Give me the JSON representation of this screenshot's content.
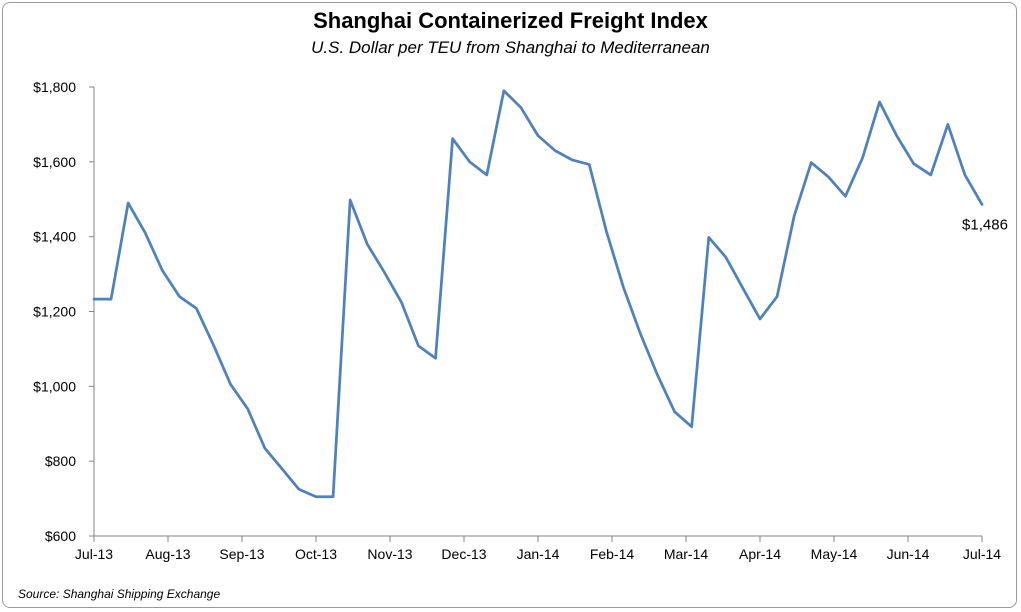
{
  "chart_data": {
    "type": "line",
    "title": "Shanghai Containerized Freight Index",
    "subtitle": "U.S. Dollar per TEU from Shanghai to Mediterranean",
    "source": "Source: Shanghai Shipping Exchange",
    "ylim": [
      600,
      1800
    ],
    "yticks": [
      600,
      800,
      1000,
      1200,
      1400,
      1600,
      1800
    ],
    "ytick_labels": [
      "$600",
      "$800",
      "$1,000",
      "$1,200",
      "$1,400",
      "$1,600",
      "$1,800"
    ],
    "xtick_labels": [
      "Jul-13",
      "Aug-13",
      "Sep-13",
      "Oct-13",
      "Nov-13",
      "Dec-13",
      "Jan-14",
      "Feb-14",
      "Mar-14",
      "Apr-14",
      "May-14",
      "Jun-14",
      "Jul-14"
    ],
    "grid": false,
    "line_color": "#4f81bd",
    "series": [
      {
        "values": [
          1233,
          1233,
          1490,
          1410,
          1310,
          1240,
          1208,
          1110,
          1005,
          940,
          835,
          780,
          725,
          705,
          705,
          1498,
          1380,
          1305,
          1225,
          1108,
          1075,
          1662,
          1600,
          1565,
          1790,
          1745,
          1670,
          1630,
          1605,
          1593,
          1415,
          1265,
          1140,
          1030,
          932,
          892,
          1398,
          1345,
          1262,
          1180,
          1240,
          1455,
          1598,
          1560,
          1508,
          1610,
          1760,
          1670,
          1595,
          1565,
          1700,
          1565,
          1486
        ]
      }
    ],
    "annotation": "$1,486"
  }
}
